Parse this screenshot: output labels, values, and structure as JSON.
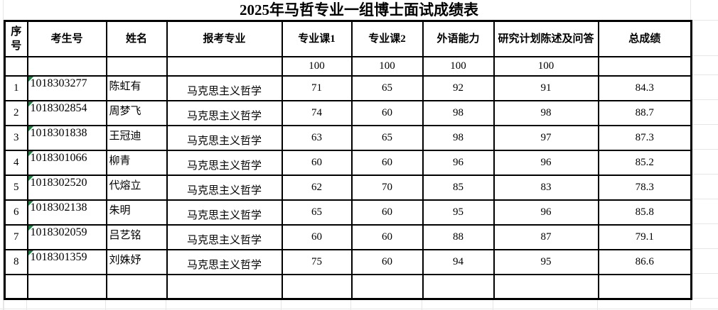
{
  "title": "2025年马哲专业一组博士面试成绩表",
  "colors": {
    "table_border": "#000000",
    "background": "#ffffff",
    "gridline": "#e6e6e6",
    "text_marker_green": "#1f7a3f"
  },
  "table": {
    "columns": [
      "序号",
      "考生号",
      "姓名",
      "报考专业",
      "专业课1",
      "专业课2",
      "外语能力",
      "研究计划陈述及问答",
      "总成绩"
    ],
    "full_scores": {
      "score1": "100",
      "score2": "100",
      "language": "100",
      "plan": "100"
    },
    "rows": [
      {
        "no": "1",
        "id": "1018303277",
        "name": "陈虹有",
        "major": "马克思主义哲学",
        "score1": "71",
        "score2": "65",
        "language": "92",
        "plan": "91",
        "total": "84.3"
      },
      {
        "no": "2",
        "id": "1018302854",
        "name": "周梦飞",
        "major": "马克思主义哲学",
        "score1": "74",
        "score2": "60",
        "language": "98",
        "plan": "98",
        "total": "88.7"
      },
      {
        "no": "3",
        "id": "1018301838",
        "name": "王冠迪",
        "major": "马克思主义哲学",
        "score1": "63",
        "score2": "65",
        "language": "98",
        "plan": "97",
        "total": "87.3"
      },
      {
        "no": "4",
        "id": "1018301066",
        "name": "柳青",
        "major": "马克思主义哲学",
        "score1": "60",
        "score2": "60",
        "language": "96",
        "plan": "96",
        "total": "85.2"
      },
      {
        "no": "5",
        "id": "1018302520",
        "name": "代熔立",
        "major": "马克思主义哲学",
        "score1": "62",
        "score2": "70",
        "language": "85",
        "plan": "83",
        "total": "78.3"
      },
      {
        "no": "6",
        "id": "1018302138",
        "name": "朱明",
        "major": "马克思主义哲学",
        "score1": "65",
        "score2": "60",
        "language": "95",
        "plan": "96",
        "total": "85.8"
      },
      {
        "no": "7",
        "id": "1018302059",
        "name": "吕艺铭",
        "major": "马克思主义哲学",
        "score1": "60",
        "score2": "60",
        "language": "88",
        "plan": "87",
        "total": "79.1"
      },
      {
        "no": "8",
        "id": "1018301359",
        "name": "刘姝妤",
        "major": "马克思主义哲学",
        "score1": "75",
        "score2": "60",
        "language": "94",
        "plan": "95",
        "total": "86.6"
      }
    ]
  }
}
